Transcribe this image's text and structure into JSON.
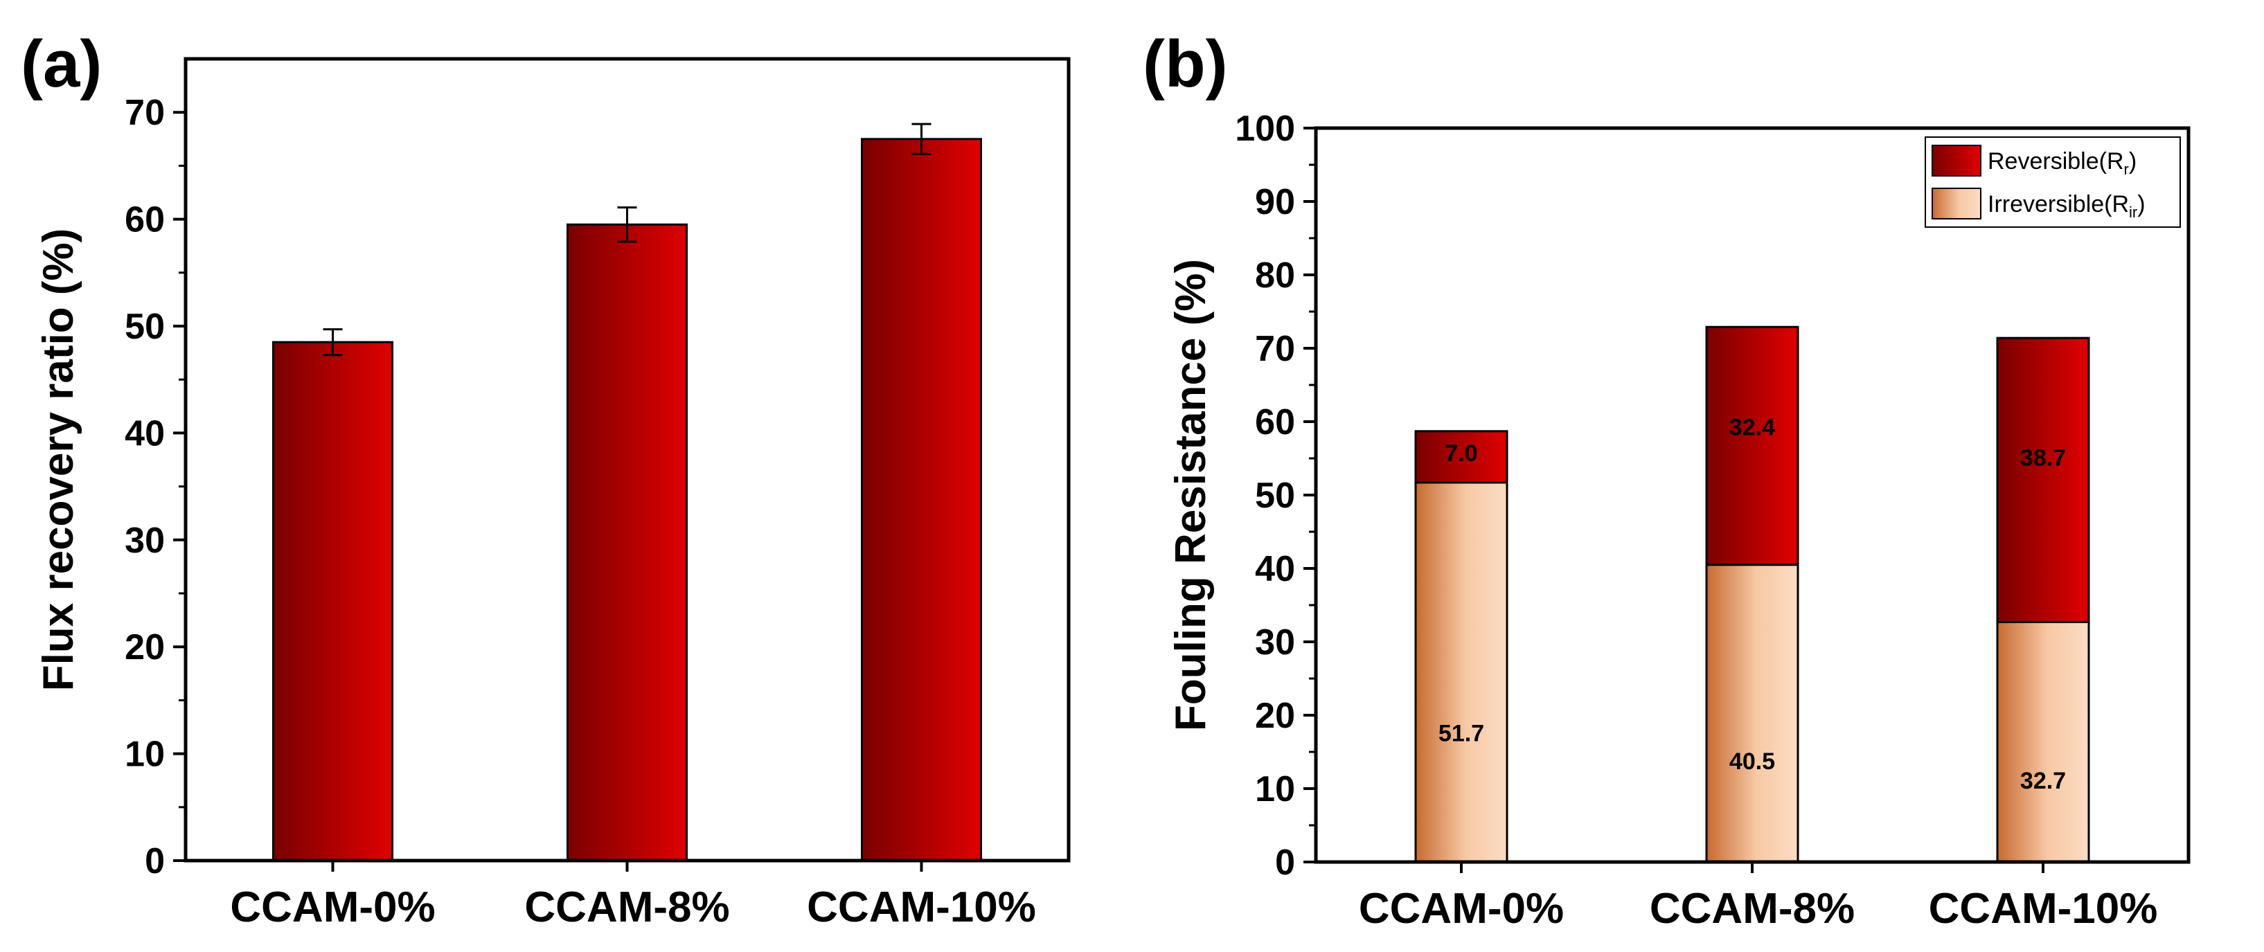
{
  "chart_data": [
    {
      "panel_label": "(a)",
      "type": "bar",
      "title": "",
      "xlabel": "",
      "ylabel": "Flux recovery ratio (%)",
      "ylim": [
        0,
        75
      ],
      "yticks": [
        0,
        10,
        20,
        30,
        40,
        50,
        60,
        70
      ],
      "categories": [
        "CCAM-0%",
        "CCAM-8%",
        "CCAM-10%"
      ],
      "values": [
        48.5,
        59.5,
        67.5
      ],
      "errors": [
        1.2,
        1.6,
        1.4
      ],
      "color": "#e00000",
      "gradient_dark": "#7a0000"
    },
    {
      "panel_label": "(b)",
      "type": "bar",
      "stacked": true,
      "title": "",
      "xlabel": "",
      "ylabel": "Fouling Resistance (%)",
      "ylim": [
        0,
        100
      ],
      "yticks": [
        0,
        10,
        20,
        30,
        40,
        50,
        60,
        70,
        80,
        90,
        100
      ],
      "categories": [
        "CCAM-0%",
        "CCAM-8%",
        "CCAM-10%"
      ],
      "series": [
        {
          "name": "Irreversible(Rir)",
          "legend_main": "Irreversible(R",
          "legend_sub": "ir",
          "legend_close": ")",
          "values": [
            51.7,
            40.5,
            32.7
          ],
          "labels": [
            "51.7",
            "40.5",
            "32.7"
          ],
          "color": "#f7c9a5",
          "gradient_dark": "#c86a30"
        },
        {
          "name": "Reversible(Rr)",
          "legend_main": "Reversible(R",
          "legend_sub": "r",
          "legend_close": ")",
          "values": [
            7.0,
            32.4,
            38.7
          ],
          "labels": [
            "7.0",
            "32.4",
            "38.7"
          ],
          "color": "#e00000"
        }
      ],
      "legend_position": "top-right"
    }
  ]
}
